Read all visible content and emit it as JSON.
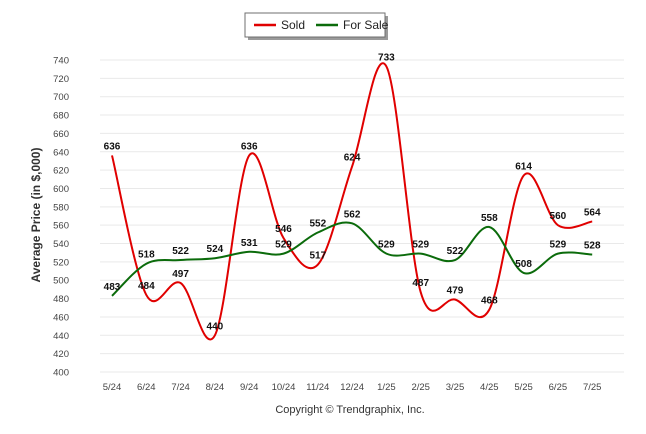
{
  "chart_data": {
    "type": "line",
    "categories": [
      "5/24",
      "6/24",
      "7/24",
      "8/24",
      "9/24",
      "10/24",
      "11/24",
      "12/24",
      "1/25",
      "2/25",
      "3/25",
      "4/25",
      "5/25",
      "6/25",
      "7/25"
    ],
    "series": [
      {
        "name": "Sold",
        "color": "#e00000",
        "values": [
          636,
          484,
          497,
          440,
          636,
          546,
          517,
          624,
          733,
          487,
          479,
          468,
          614,
          560,
          564
        ]
      },
      {
        "name": "For Sale",
        "color": "#0b6b0b",
        "values": [
          483,
          518,
          522,
          524,
          531,
          529,
          552,
          562,
          529,
          529,
          522,
          558,
          508,
          529,
          528
        ]
      }
    ],
    "ylabel": "Average Price (in $,000)",
    "xlabel": "",
    "ylim": [
      400,
      740
    ],
    "ytick_step": 20,
    "grid": true,
    "legend": "top-center"
  },
  "footer": {
    "copyright": "Copyright © Trendgraphix, Inc."
  }
}
